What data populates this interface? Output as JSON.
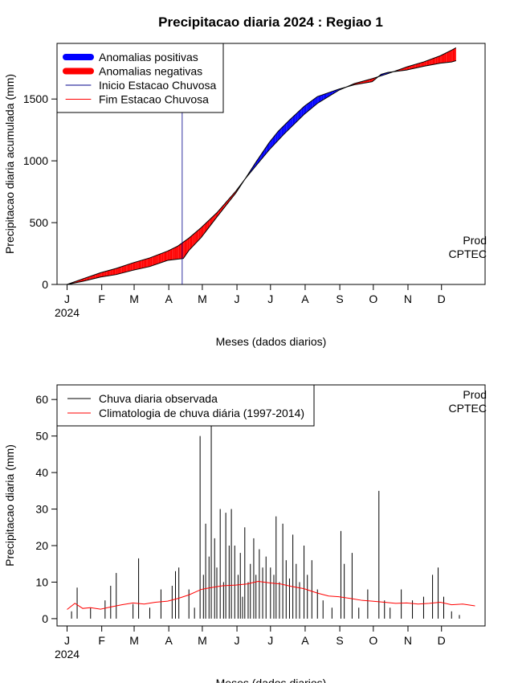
{
  "title": "Precipitacao diaria 2024 : Regiao 1",
  "month_labels": [
    "J",
    "F",
    "M",
    "A",
    "M",
    "J",
    "J",
    "A",
    "S",
    "O",
    "N",
    "D"
  ],
  "year_label": "2024",
  "watermark": [
    "Prod",
    "CPTEC"
  ],
  "colors": {
    "positive": "#0000ff",
    "negative": "#ff0000",
    "onset": "#00008b",
    "end": "#ff0000",
    "observed": "#000000",
    "climatology": "#ff0000"
  },
  "chart_data": [
    {
      "type": "area",
      "ylabel": "Precipitacao diaria acumulada (mm)",
      "xlabel": "Meses (dados diarios)",
      "ylim": [
        0,
        1950
      ],
      "yticks": [
        0,
        500,
        1000,
        1500
      ],
      "xlim_day": [
        -8,
        375
      ],
      "legend_position": "top-left",
      "legend": [
        {
          "label": "Anomalias positivas",
          "kind": "thick",
          "color": "#0000ff"
        },
        {
          "label": "Anomalias negativas",
          "kind": "thick",
          "color": "#ff0000"
        },
        {
          "label": "Inicio Estacao Chuvosa",
          "kind": "thin",
          "color": "#00008b"
        },
        {
          "label": "Fim Estacao Chuvosa",
          "kind": "thin",
          "color": "#ff0000"
        }
      ],
      "onset_day": 104,
      "series": [
        {
          "name": "Acumulado climatologico",
          "points": [
            [
              1,
              0
            ],
            [
              15,
              45
            ],
            [
              31,
              95
            ],
            [
              45,
              130
            ],
            [
              60,
              175
            ],
            [
              75,
              215
            ],
            [
              91,
              270
            ],
            [
              100,
              310
            ],
            [
              110,
              375
            ],
            [
              121,
              460
            ],
            [
              135,
              580
            ],
            [
              152,
              755
            ],
            [
              160,
              850
            ],
            [
              170,
              960
            ],
            [
              182,
              1090
            ],
            [
              195,
              1215
            ],
            [
              213,
              1375
            ],
            [
              225,
              1465
            ],
            [
              244,
              1570
            ],
            [
              258,
              1625
            ],
            [
              274,
              1665
            ],
            [
              288,
              1705
            ],
            [
              305,
              1760
            ],
            [
              320,
              1800
            ],
            [
              335,
              1850
            ],
            [
              345,
              1895
            ],
            [
              349,
              1915
            ]
          ]
        },
        {
          "name": "Acumulado observado",
          "points": [
            [
              1,
              0
            ],
            [
              15,
              25
            ],
            [
              31,
              60
            ],
            [
              45,
              80
            ],
            [
              60,
              115
            ],
            [
              75,
              145
            ],
            [
              91,
              195
            ],
            [
              100,
              205
            ],
            [
              105,
              210
            ],
            [
              110,
              275
            ],
            [
              121,
              380
            ],
            [
              135,
              545
            ],
            [
              152,
              740
            ],
            [
              160,
              850
            ],
            [
              170,
              990
            ],
            [
              182,
              1150
            ],
            [
              190,
              1240
            ],
            [
              200,
              1330
            ],
            [
              213,
              1440
            ],
            [
              225,
              1520
            ],
            [
              244,
              1580
            ],
            [
              258,
              1615
            ],
            [
              274,
              1640
            ],
            [
              282,
              1700
            ],
            [
              288,
              1715
            ],
            [
              305,
              1735
            ],
            [
              320,
              1765
            ],
            [
              335,
              1790
            ],
            [
              345,
              1800
            ],
            [
              349,
              1810
            ]
          ]
        }
      ]
    },
    {
      "type": "bar",
      "ylabel": "Precipitacao diaria (mm)",
      "xlabel": "Meses (dados diarios)",
      "ylim": [
        -2,
        64
      ],
      "yticks": [
        0,
        10,
        20,
        30,
        40,
        50,
        60
      ],
      "xlim_day": [
        -8,
        375
      ],
      "legend_position": "top-left",
      "legend": [
        {
          "label": "Chuva diaria observada",
          "kind": "thin",
          "color": "#000000"
        },
        {
          "label": "Climatologia de chuva diária (1997-2014)",
          "kind": "thin",
          "color": "#ff0000"
        }
      ],
      "climatology_points": [
        [
          1,
          2.5
        ],
        [
          8,
          4.2
        ],
        [
          15,
          2.8
        ],
        [
          22,
          3.0
        ],
        [
          31,
          2.6
        ],
        [
          40,
          3.2
        ],
        [
          50,
          3.8
        ],
        [
          60,
          4.3
        ],
        [
          70,
          4.0
        ],
        [
          80,
          4.5
        ],
        [
          91,
          4.8
        ],
        [
          100,
          5.5
        ],
        [
          110,
          6.5
        ],
        [
          121,
          8.0
        ],
        [
          130,
          8.5
        ],
        [
          140,
          9.0
        ],
        [
          152,
          9.2
        ],
        [
          162,
          9.5
        ],
        [
          172,
          10.2
        ],
        [
          182,
          9.8
        ],
        [
          192,
          9.5
        ],
        [
          202,
          8.8
        ],
        [
          213,
          8.2
        ],
        [
          225,
          7.0
        ],
        [
          235,
          6.2
        ],
        [
          244,
          6.0
        ],
        [
          255,
          5.5
        ],
        [
          265,
          5.0
        ],
        [
          274,
          4.8
        ],
        [
          285,
          4.5
        ],
        [
          295,
          4.2
        ],
        [
          305,
          4.3
        ],
        [
          315,
          4.0
        ],
        [
          325,
          4.2
        ],
        [
          335,
          4.5
        ],
        [
          345,
          3.8
        ],
        [
          355,
          4.0
        ],
        [
          366,
          3.5
        ]
      ],
      "major_bars": [
        [
          5,
          2
        ],
        [
          10,
          8.5
        ],
        [
          22,
          3
        ],
        [
          35,
          5
        ],
        [
          40,
          9
        ],
        [
          45,
          12.5
        ],
        [
          60,
          4
        ],
        [
          65,
          16.5
        ],
        [
          75,
          3
        ],
        [
          85,
          8
        ],
        [
          95,
          9
        ],
        [
          98,
          13
        ],
        [
          101,
          14
        ],
        [
          110,
          8
        ],
        [
          115,
          3
        ],
        [
          120,
          50
        ],
        [
          123,
          12
        ],
        [
          125,
          26
        ],
        [
          128,
          17
        ],
        [
          130,
          53
        ],
        [
          133,
          22
        ],
        [
          135,
          14
        ],
        [
          138,
          30
        ],
        [
          141,
          10
        ],
        [
          143,
          29
        ],
        [
          146,
          20
        ],
        [
          148,
          30
        ],
        [
          151,
          20
        ],
        [
          154,
          12
        ],
        [
          156,
          18
        ],
        [
          158,
          6
        ],
        [
          160,
          25
        ],
        [
          163,
          10
        ],
        [
          165,
          15
        ],
        [
          168,
          22
        ],
        [
          170,
          12
        ],
        [
          173,
          19
        ],
        [
          176,
          14
        ],
        [
          179,
          17
        ],
        [
          183,
          14
        ],
        [
          186,
          12
        ],
        [
          188,
          28
        ],
        [
          191,
          10
        ],
        [
          194,
          26
        ],
        [
          197,
          16
        ],
        [
          200,
          11
        ],
        [
          203,
          23
        ],
        [
          206,
          15
        ],
        [
          209,
          10
        ],
        [
          213,
          20
        ],
        [
          216,
          12
        ],
        [
          220,
          16
        ],
        [
          225,
          8
        ],
        [
          230,
          5
        ],
        [
          238,
          3
        ],
        [
          246,
          24
        ],
        [
          249,
          15
        ],
        [
          256,
          18
        ],
        [
          262,
          3
        ],
        [
          270,
          8
        ],
        [
          280,
          35
        ],
        [
          285,
          5
        ],
        [
          290,
          3
        ],
        [
          300,
          8
        ],
        [
          310,
          5
        ],
        [
          320,
          6
        ],
        [
          328,
          12
        ],
        [
          333,
          14
        ],
        [
          338,
          6
        ],
        [
          345,
          2
        ],
        [
          352,
          1
        ]
      ]
    }
  ]
}
